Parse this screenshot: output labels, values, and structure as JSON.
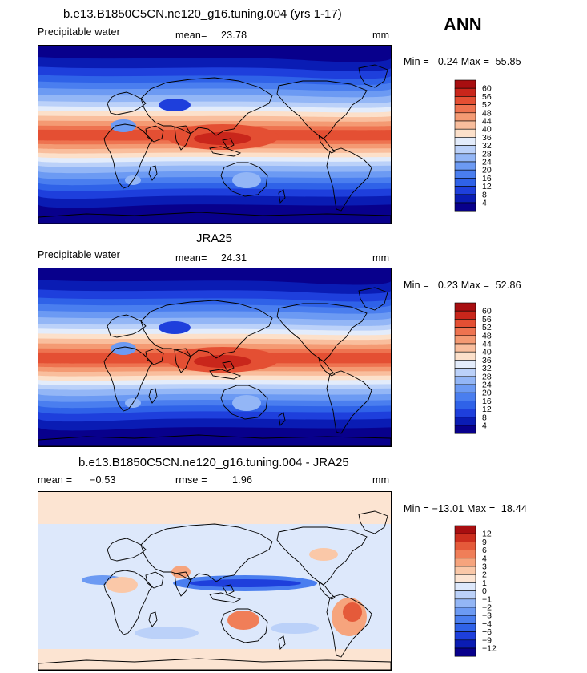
{
  "season": "ANN",
  "palette_pos": [
    "#08008C",
    "#0A1CB4",
    "#1E3FDC",
    "#2F62E8",
    "#4A7EEF",
    "#6C9AF3",
    "#93B6F6",
    "#BBD1F9",
    "#E3ECFB",
    "#FCE0CA",
    "#F9BE9D",
    "#F49A73",
    "#EE7350",
    "#E44F33",
    "#C9261B",
    "#A80E10",
    "#7A0006"
  ],
  "palette_diff": [
    "#08008C",
    "#0A1CB4",
    "#1E3FDC",
    "#2F62E8",
    "#4A7EEF",
    "#6C9AF3",
    "#93B6F6",
    "#BBD1F9",
    "#DDE8FB",
    "#FCE4D2",
    "#FAC8A8",
    "#F6A47D",
    "#F07E58",
    "#E55A3A",
    "#CC2E1E",
    "#A80E10",
    "#7A0006"
  ],
  "panels": [
    {
      "title": "b.e13.B1850C5CN.ne120_g16.tuning.004 (yrs 1-17)",
      "field": "Precipitable water",
      "stat_label": "mean=",
      "stat_value": "23.78",
      "units": "mm",
      "minmax": "Min =   0.24 Max =  55.85"
    },
    {
      "title": "JRA25",
      "field": "Precipitable water",
      "stat_label": "mean=",
      "stat_value": "24.31",
      "units": "mm",
      "minmax": "Min =   0.23 Max =  52.86"
    },
    {
      "title": "b.e13.B1850C5CN.ne120_g16.tuning.004 - JRA25",
      "stat_label": "mean =",
      "stat_value": "−0.53",
      "rmse_label": "rmse =",
      "rmse_value": "1.96",
      "units": "mm",
      "minmax": "Min = −13.01 Max =  18.44"
    }
  ],
  "chart_data": [
    {
      "type": "heatmap",
      "title": "b.e13.B1850C5CN.ne120_g16.tuning.004 (yrs 1-17)",
      "field": "Precipitable water",
      "units": "mm",
      "mean": 23.78,
      "min": 0.24,
      "max": 55.85,
      "colorbar_levels": [
        4,
        8,
        12,
        16,
        20,
        24,
        28,
        32,
        36,
        40,
        44,
        48,
        52,
        56,
        60
      ]
    },
    {
      "type": "heatmap",
      "title": "JRA25",
      "field": "Precipitable water",
      "units": "mm",
      "mean": 24.31,
      "min": 0.23,
      "max": 52.86,
      "colorbar_levels": [
        4,
        8,
        12,
        16,
        20,
        24,
        28,
        32,
        36,
        40,
        44,
        48,
        52,
        56,
        60
      ]
    },
    {
      "type": "heatmap",
      "title": "b.e13.B1850C5CN.ne120_g16.tuning.004 - JRA25",
      "units": "mm",
      "mean": -0.53,
      "rmse": 1.96,
      "min": -13.01,
      "max": 18.44,
      "colorbar_levels": [
        -12,
        -9,
        -6,
        -4,
        -3,
        -2,
        -1,
        0,
        1,
        2,
        3,
        4,
        6,
        9,
        12
      ]
    }
  ]
}
